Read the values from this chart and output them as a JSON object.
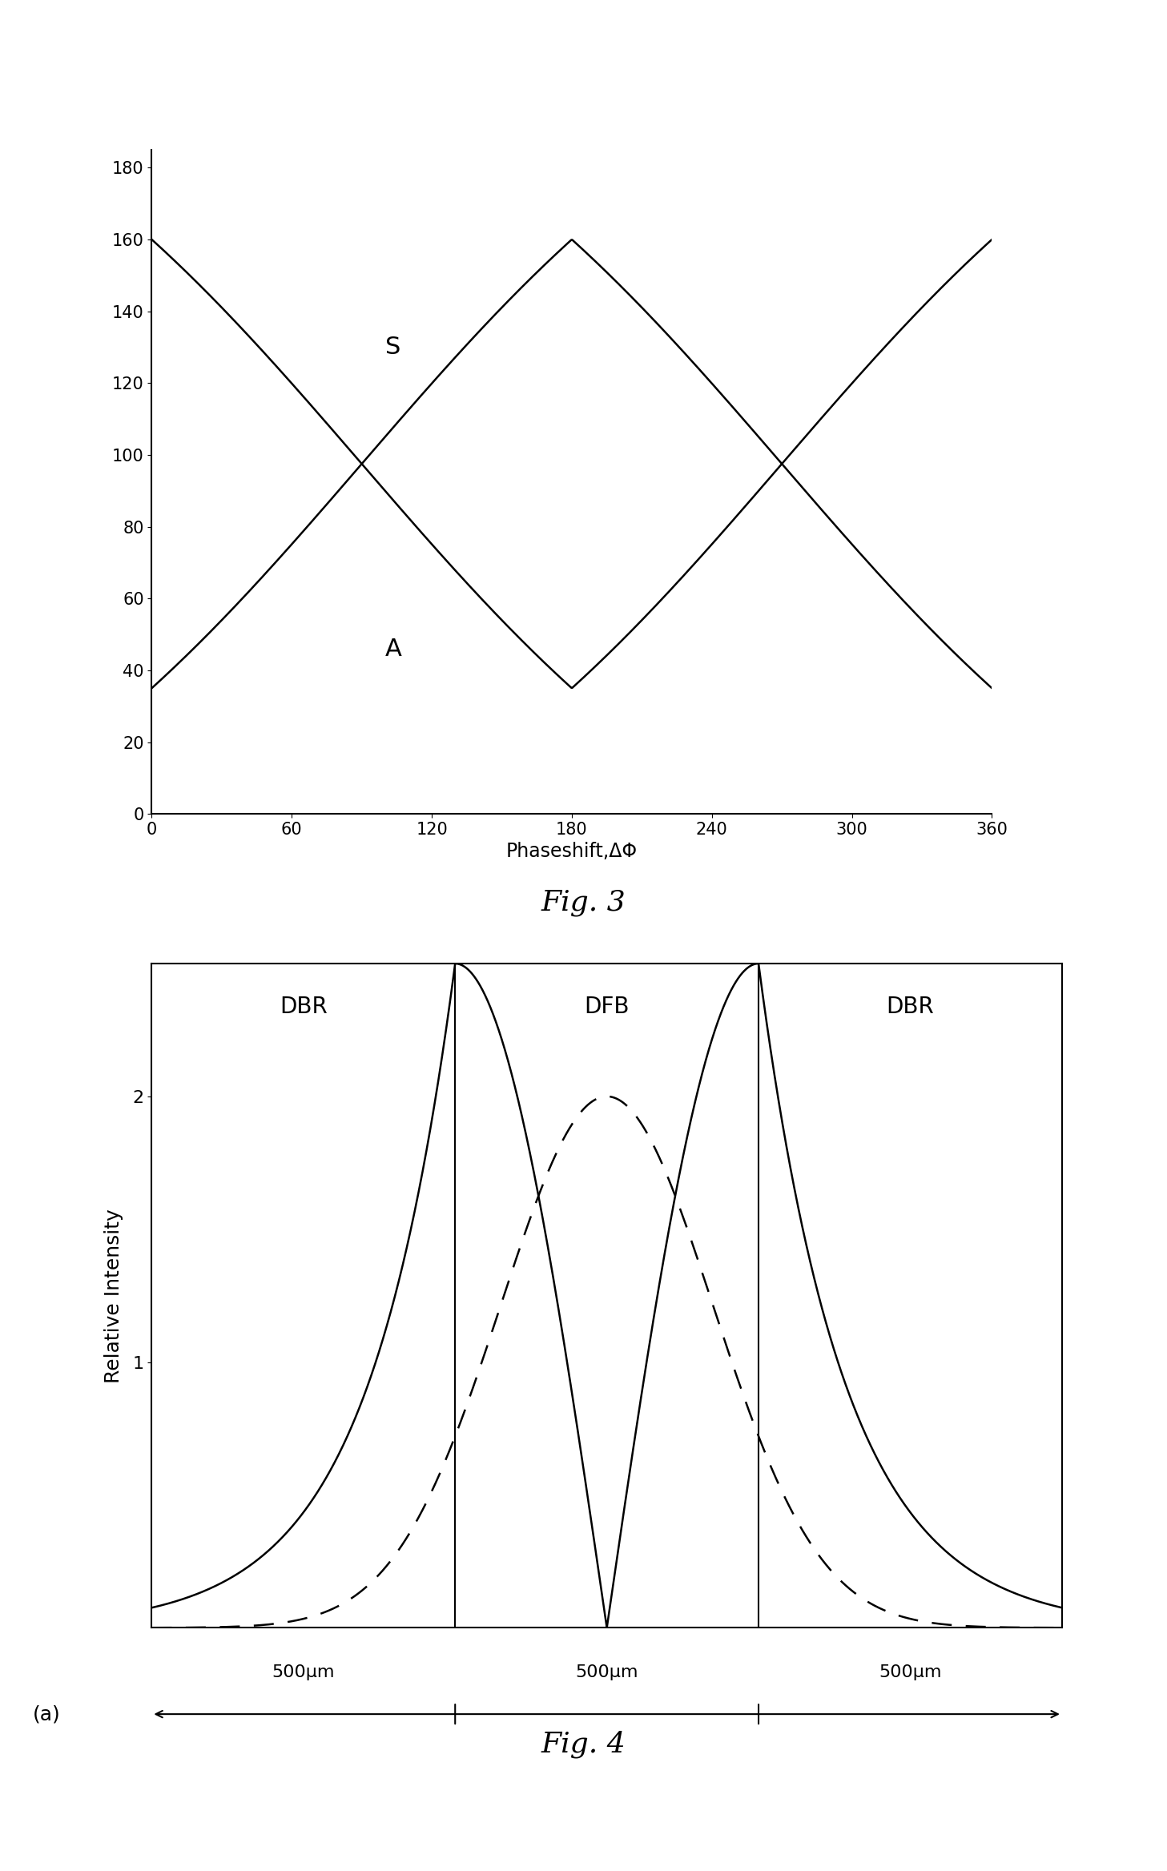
{
  "fig3": {
    "xlabel": "Phaseshift,ΔΦ",
    "ylim": [
      0,
      185
    ],
    "xlim": [
      0,
      360
    ],
    "xticks": [
      0,
      60,
      120,
      180,
      240,
      300,
      360
    ],
    "yticks": [
      0,
      20,
      40,
      60,
      80,
      100,
      120,
      140,
      160,
      180
    ],
    "label_S": "S",
    "label_A": "A",
    "fig_label": "Fig. 3"
  },
  "fig4": {
    "ylabel": "Relative Intensity",
    "ylim": [
      0,
      2.5
    ],
    "yticks": [
      1,
      2
    ],
    "label_DBR_left": "DBR",
    "label_DFB": "DFB",
    "label_DBR_right": "DBR",
    "label_500um_1": "500μm",
    "label_500um_2": "500μm",
    "label_500um_3": "500μm",
    "label_a": "(a)",
    "fig_label": "Fig. 4"
  }
}
